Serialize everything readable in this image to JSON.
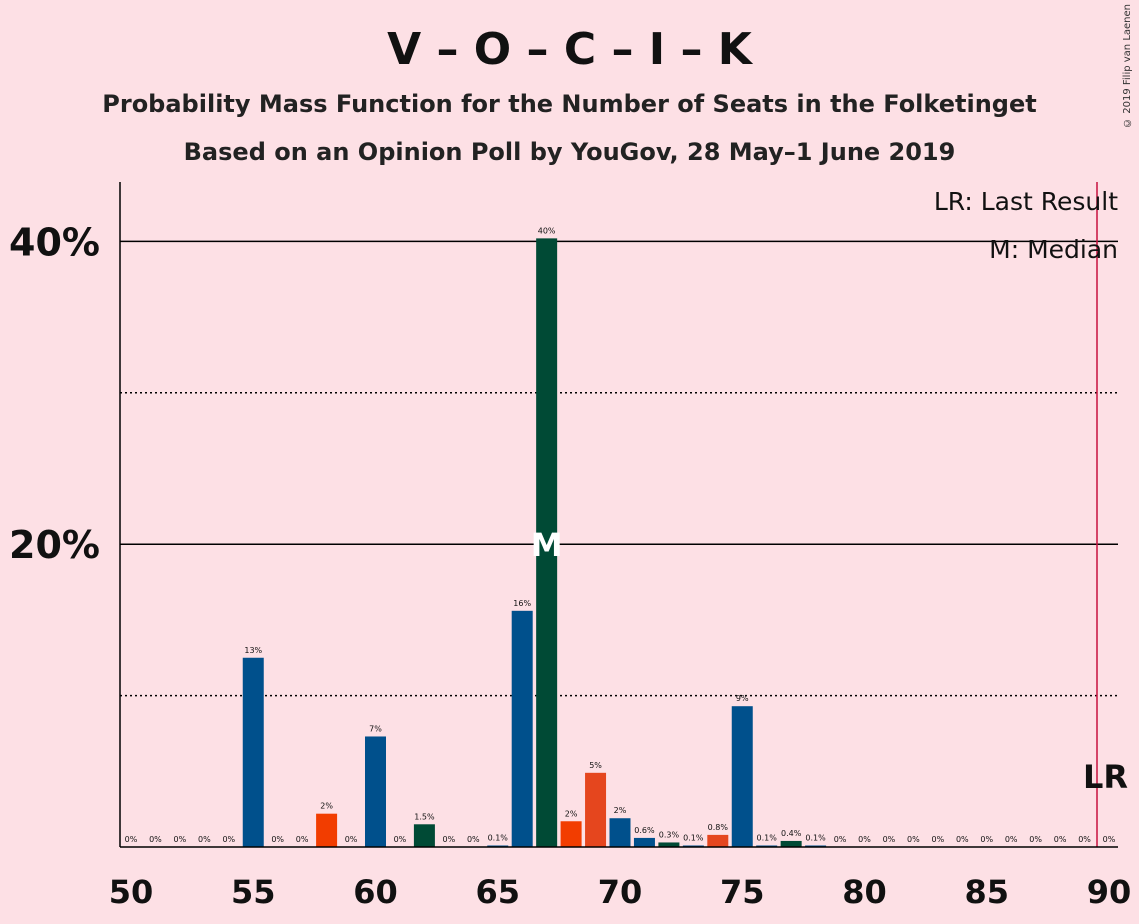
{
  "title": "V – O – C – I – K",
  "subtitle": "Probability Mass Function for the Number of Seats in the Folketinget",
  "subtitle2": "Based on an Opinion Poll by YouGov, 28 May–1 June 2019",
  "copyright": "© 2019 Filip van Laenen",
  "colors": {
    "background": "#fde0e5",
    "blue": "#00508c",
    "green": "#004a35",
    "orange_red": "#f23d00",
    "orange": "#e5461e",
    "last_result_line": "#c8103e"
  },
  "chart_data": {
    "type": "bar",
    "x": [
      50,
      51,
      52,
      53,
      54,
      55,
      56,
      57,
      58,
      59,
      60,
      61,
      62,
      63,
      64,
      65,
      66,
      67,
      68,
      69,
      70,
      71,
      72,
      73,
      74,
      75,
      76,
      77,
      78,
      79,
      80,
      81,
      82,
      83,
      84,
      85,
      86,
      87,
      88,
      89,
      90
    ],
    "values": [
      0,
      0,
      0,
      0,
      0,
      12.5,
      0,
      0,
      2.2,
      0,
      7.3,
      0,
      1.5,
      0,
      0,
      0.1,
      15.6,
      40.2,
      1.7,
      4.9,
      1.9,
      0.6,
      0.3,
      0.1,
      0.8,
      9.3,
      0.1,
      0.4,
      0.1,
      0,
      0,
      0,
      0,
      0,
      0,
      0,
      0,
      0,
      0,
      0,
      0
    ],
    "data_labels": [
      "0%",
      "0%",
      "0%",
      "0%",
      "0%",
      "13%",
      "0%",
      "0%",
      "2%",
      "0%",
      "7%",
      "0%",
      "1.5%",
      "0%",
      "0%",
      "0.1%",
      "16%",
      "40%",
      "2%",
      "5%",
      "2%",
      "0.6%",
      "0.3%",
      "0.1%",
      "0.8%",
      "9%",
      "0.1%",
      "0.4%",
      "0.1%",
      "0%",
      "0%",
      "0%",
      "0%",
      "0%",
      "0%",
      "0%",
      "0%",
      "0%",
      "0%",
      "0%",
      "0%"
    ],
    "bar_colors": [
      "blue",
      "blue",
      "blue",
      "blue",
      "blue",
      "blue",
      "blue",
      "blue",
      "orange_red",
      "blue",
      "blue",
      "green",
      "green",
      "green",
      "blue",
      "blue",
      "blue",
      "green",
      "orange_red",
      "orange",
      "blue",
      "blue",
      "green",
      "blue",
      "orange",
      "blue",
      "blue",
      "green",
      "blue",
      "blue",
      "blue",
      "blue",
      "blue",
      "blue",
      "blue",
      "blue",
      "blue",
      "blue",
      "blue",
      "blue",
      "blue"
    ],
    "xlim": [
      50,
      90
    ],
    "ylim": [
      0,
      44
    ],
    "x_ticks": [
      50,
      55,
      60,
      65,
      70,
      75,
      80,
      85,
      90
    ],
    "y_ticks_solid": [
      {
        "value": 20,
        "label": "20%"
      },
      {
        "value": 40,
        "label": "40%"
      }
    ],
    "y_ticks_dotted": [
      10,
      30
    ],
    "median": 67,
    "median_label": "M",
    "last_result": 90,
    "last_result_label": "LR",
    "legend": [
      "LR: Last Result",
      "M: Median"
    ],
    "grid": true
  }
}
